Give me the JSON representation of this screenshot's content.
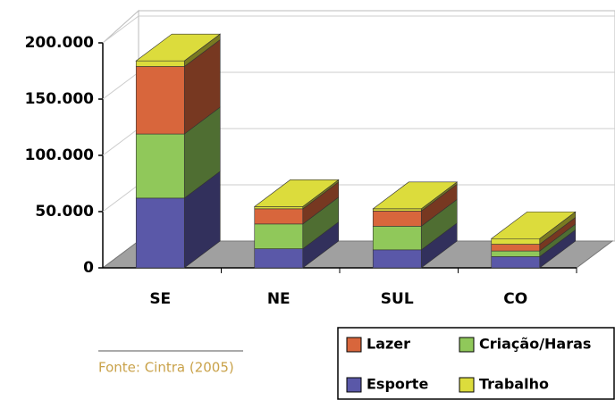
{
  "chart_data": {
    "type": "bar3d_stacked",
    "categories": [
      "SE",
      "NE",
      "SUL",
      "CO"
    ],
    "series": [
      {
        "name": "Esporte",
        "color": "#5a58a8",
        "values": [
          62000,
          17000,
          16000,
          10000
        ]
      },
      {
        "name": "Criação/Haras",
        "color": "#90c85a",
        "values": [
          57000,
          22000,
          21000,
          5000
        ]
      },
      {
        "name": "Lazer",
        "color": "#d8663c",
        "values": [
          60000,
          13500,
          13500,
          6000
        ]
      },
      {
        "name": "Trabalho",
        "color": "#dcdc3c",
        "values": [
          5000,
          2000,
          2000,
          5000
        ]
      }
    ],
    "ylim": [
      0,
      200000
    ],
    "yticks": [
      {
        "value": 0,
        "label": "0"
      },
      {
        "value": 50000,
        "label": "50.000"
      },
      {
        "value": 100000,
        "label": "100.000"
      },
      {
        "value": 150000,
        "label": "150.000"
      },
      {
        "value": 200000,
        "label": "200.000"
      }
    ],
    "grid": true,
    "source": "Fonte: Cintra (2005)"
  }
}
